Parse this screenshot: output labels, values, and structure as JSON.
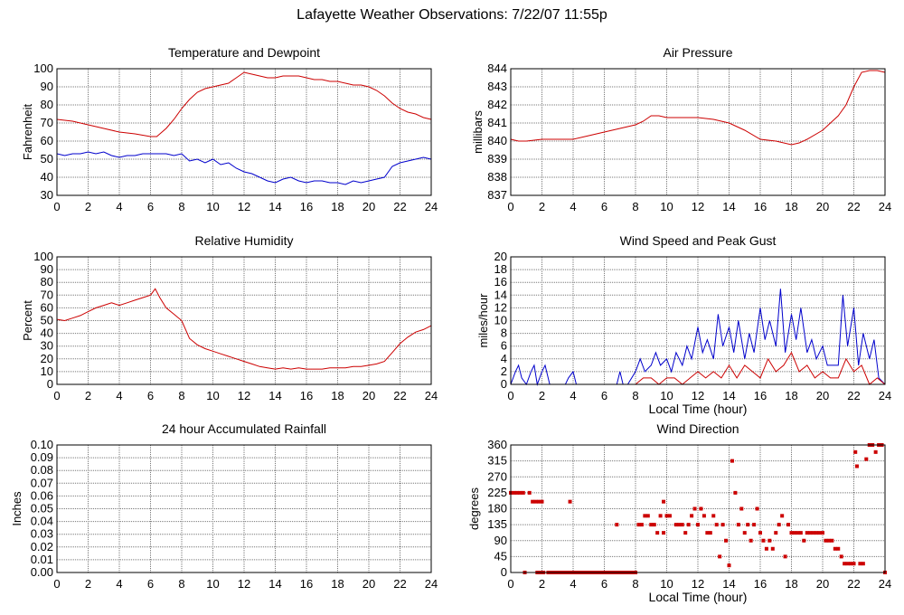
{
  "page_title": "Lafayette Weather Observations: 7/22/07 11:55p",
  "chart_data": [
    {
      "id": "temp",
      "type": "line",
      "title": "Temperature and Dewpoint",
      "xlabel": "",
      "ylabel": "Fahrenheit",
      "xlim": [
        0,
        24
      ],
      "ylim": [
        30,
        100
      ],
      "x_ticks": [
        0,
        2,
        4,
        6,
        8,
        10,
        12,
        14,
        16,
        18,
        20,
        22,
        24
      ],
      "y_ticks": [
        30,
        40,
        50,
        60,
        70,
        80,
        90,
        100
      ],
      "grid": true,
      "series": [
        {
          "color": "#cc0000",
          "x": [
            0,
            1,
            2,
            3,
            4,
            5,
            6,
            6.4,
            7,
            7.5,
            8,
            8.5,
            9,
            9.5,
            10,
            10.5,
            11,
            11.5,
            12,
            12.5,
            13,
            13.5,
            14,
            14.5,
            15,
            15.5,
            16,
            16.5,
            17,
            17.5,
            18,
            18.5,
            19,
            19.5,
            20,
            20.5,
            21,
            21.5,
            22,
            22.5,
            23,
            23.5,
            24
          ],
          "y": [
            72,
            71,
            69,
            67,
            65,
            64,
            62.5,
            62.5,
            67,
            72,
            78,
            83,
            87,
            89,
            90,
            91,
            92,
            95,
            98,
            97,
            96,
            95,
            95,
            96,
            96,
            96,
            95,
            94,
            94,
            93,
            93,
            92,
            91,
            91,
            90,
            88,
            85,
            81,
            78,
            76,
            75,
            73,
            72
          ]
        },
        {
          "color": "#0000cc",
          "x": [
            0,
            0.5,
            1,
            1.5,
            2,
            2.5,
            3,
            3.5,
            4,
            4.5,
            5,
            5.5,
            6,
            6.5,
            7,
            7.5,
            8,
            8.5,
            9,
            9.5,
            10,
            10.5,
            11,
            11.5,
            12,
            12.5,
            13,
            13.5,
            14,
            14.5,
            15,
            15.5,
            16,
            16.5,
            17,
            17.5,
            18,
            18.5,
            19,
            19.5,
            20,
            20.5,
            21,
            21.5,
            22,
            22.5,
            23,
            23.5,
            24
          ],
          "y": [
            53,
            52,
            53,
            53,
            54,
            53,
            54,
            52,
            51,
            52,
            52,
            53,
            53,
            53,
            53,
            52,
            53,
            49,
            50,
            48,
            50,
            47,
            48,
            45,
            43,
            42,
            40,
            38,
            37,
            39,
            40,
            38,
            37,
            38,
            38,
            37,
            37,
            36,
            38,
            37,
            38,
            39,
            40,
            46,
            48,
            49,
            50,
            51,
            50
          ]
        }
      ]
    },
    {
      "id": "pressure",
      "type": "line",
      "title": "Air Pressure",
      "xlabel": "",
      "ylabel": "millibars",
      "xlim": [
        0,
        24
      ],
      "ylim": [
        837,
        844
      ],
      "x_ticks": [
        0,
        2,
        4,
        6,
        8,
        10,
        12,
        14,
        16,
        18,
        20,
        22,
        24
      ],
      "y_ticks": [
        837,
        838,
        839,
        840,
        841,
        842,
        843,
        844
      ],
      "grid": true,
      "series": [
        {
          "color": "#cc0000",
          "x": [
            0,
            0.5,
            1,
            2,
            3,
            4,
            5,
            6,
            7,
            8,
            8.5,
            9,
            9.5,
            10,
            11,
            12,
            13,
            14,
            15,
            16,
            17,
            18,
            18.5,
            19,
            20,
            20.5,
            21,
            21.5,
            22,
            22.5,
            23,
            23.5,
            24
          ],
          "y": [
            840.1,
            840.0,
            840.0,
            840.1,
            840.1,
            840.1,
            840.3,
            840.5,
            840.7,
            840.9,
            841.1,
            841.4,
            841.4,
            841.3,
            841.3,
            841.3,
            841.2,
            841.0,
            840.6,
            840.1,
            840.0,
            839.8,
            839.9,
            840.1,
            840.6,
            841.0,
            841.4,
            842.0,
            843.0,
            843.8,
            843.9,
            843.9,
            843.8
          ]
        }
      ]
    },
    {
      "id": "humidity",
      "type": "line",
      "title": "Relative Humidity",
      "xlabel": "",
      "ylabel": "Percent",
      "xlim": [
        0,
        24
      ],
      "ylim": [
        0,
        100
      ],
      "x_ticks": [
        0,
        2,
        4,
        6,
        8,
        10,
        12,
        14,
        16,
        18,
        20,
        22,
        24
      ],
      "y_ticks": [
        0,
        10,
        20,
        30,
        40,
        50,
        60,
        70,
        80,
        90,
        100
      ],
      "grid": true,
      "series": [
        {
          "color": "#cc0000",
          "x": [
            0,
            0.5,
            1,
            1.5,
            2,
            2.5,
            3,
            3.5,
            4,
            4.5,
            5,
            5.5,
            6,
            6.3,
            6.6,
            7,
            7.5,
            8,
            8.5,
            9,
            9.5,
            10,
            10.5,
            11,
            11.5,
            12,
            12.5,
            13,
            13.5,
            14,
            14.5,
            15,
            15.5,
            16,
            16.5,
            17,
            17.5,
            18,
            18.5,
            19,
            19.5,
            20,
            20.5,
            21,
            21.5,
            22,
            22.5,
            23,
            23.5,
            24
          ],
          "y": [
            51,
            50,
            52,
            54,
            57,
            60,
            62,
            64,
            62,
            64,
            66,
            68,
            70,
            75,
            68,
            60,
            55,
            50,
            36,
            31,
            28,
            26,
            24,
            22,
            20,
            18,
            16,
            14,
            13,
            12,
            13,
            12,
            13,
            12,
            12,
            12,
            13,
            13,
            13,
            14,
            14,
            15,
            16,
            18,
            25,
            32,
            37,
            41,
            43,
            46
          ]
        }
      ]
    },
    {
      "id": "wind",
      "type": "line",
      "title": "Wind Speed and Peak Gust",
      "xlabel": "Local Time (hour)",
      "ylabel": "miles/hour",
      "xlim": [
        0,
        24
      ],
      "ylim": [
        0,
        20
      ],
      "x_ticks": [
        0,
        2,
        4,
        6,
        8,
        10,
        12,
        14,
        16,
        18,
        20,
        22,
        24
      ],
      "y_ticks": [
        0,
        2,
        4,
        6,
        8,
        10,
        12,
        14,
        16,
        18,
        20
      ],
      "grid": true,
      "series": [
        {
          "color": "#0000cc",
          "x": [
            0,
            0.3,
            0.5,
            0.7,
            1,
            1.3,
            1.5,
            1.7,
            2,
            2.2,
            2.5,
            3,
            3.5,
            3.7,
            4,
            4.2,
            4.5,
            5,
            6,
            6.8,
            7,
            7.2,
            7.5,
            8,
            8.3,
            8.6,
            9,
            9.3,
            9.6,
            10,
            10.3,
            10.6,
            11,
            11.3,
            11.6,
            12,
            12.3,
            12.6,
            13,
            13.3,
            13.6,
            14,
            14.3,
            14.6,
            15,
            15.3,
            15.6,
            16,
            16.3,
            16.6,
            17,
            17.3,
            17.6,
            18,
            18.3,
            18.6,
            19,
            19.3,
            19.6,
            20,
            20.3,
            20.6,
            21,
            21.3,
            21.6,
            22,
            22.3,
            22.6,
            23,
            23.3,
            23.6,
            24
          ],
          "y": [
            0,
            2,
            3,
            1,
            0,
            2,
            3,
            0,
            2,
            3,
            0,
            0,
            0,
            1,
            2,
            0,
            0,
            0,
            0,
            0,
            2,
            0,
            0,
            2,
            4,
            2,
            3,
            5,
            3,
            4,
            2,
            5,
            3,
            6,
            4,
            9,
            5,
            7,
            4,
            11,
            6,
            9,
            5,
            10,
            4,
            8,
            5,
            12,
            7,
            10,
            6,
            15,
            5,
            11,
            7,
            12,
            5,
            7,
            4,
            6,
            3,
            3,
            3,
            14,
            6,
            12,
            3,
            8,
            4,
            7,
            1,
            0
          ]
        },
        {
          "color": "#cc0000",
          "x": [
            0,
            1,
            2,
            3,
            4,
            5,
            6,
            7,
            8,
            8.5,
            9,
            9.5,
            10,
            10.5,
            11,
            11.5,
            12,
            12.5,
            13,
            13.5,
            14,
            14.5,
            15,
            15.5,
            16,
            16.5,
            17,
            17.5,
            18,
            18.5,
            19,
            19.5,
            20,
            20.5,
            21,
            21.5,
            22,
            22.5,
            23,
            23.5,
            24
          ],
          "y": [
            0,
            0,
            0,
            0,
            0,
            0,
            0,
            0,
            0,
            1,
            1,
            0,
            1,
            1,
            0,
            1,
            2,
            1,
            2,
            1,
            3,
            1,
            3,
            2,
            1,
            4,
            2,
            3,
            5,
            2,
            3,
            1,
            2,
            1,
            1,
            4,
            2,
            3,
            0,
            1,
            0
          ]
        }
      ]
    },
    {
      "id": "rain",
      "type": "line",
      "title": "24 hour Accumulated Rainfall",
      "xlabel": "",
      "ylabel": "Inches",
      "xlim": [
        0,
        24
      ],
      "ylim": [
        0,
        0.1
      ],
      "x_ticks": [
        0,
        2,
        4,
        6,
        8,
        10,
        12,
        14,
        16,
        18,
        20,
        22,
        24
      ],
      "y_ticks": [
        "0.00",
        "0.01",
        "0.02",
        "0.03",
        "0.04",
        "0.05",
        "0.06",
        "0.07",
        "0.08",
        "0.09",
        "0.10"
      ],
      "grid": true,
      "series": [
        {
          "color": "#cc0000",
          "x": [
            0,
            24
          ],
          "y": [
            0,
            0
          ]
        }
      ]
    },
    {
      "id": "winddir",
      "type": "scatter",
      "title": "Wind Direction",
      "xlabel": "Local Time (hour)",
      "ylabel": "degrees",
      "xlim": [
        0,
        24
      ],
      "ylim": [
        0,
        360
      ],
      "x_ticks": [
        0,
        2,
        4,
        6,
        8,
        10,
        12,
        14,
        16,
        18,
        20,
        22,
        24
      ],
      "y_ticks": [
        0,
        45,
        90,
        135,
        180,
        225,
        270,
        315,
        360
      ],
      "grid": true,
      "series": [
        {
          "color": "#cc0000",
          "x": [
            0,
            0.2,
            0.4,
            0.6,
            0.8,
            0.9,
            1.2,
            1.4,
            1.6,
            1.8,
            2.0,
            1.7,
            1.9,
            2.1,
            2.4,
            2.6,
            2.8,
            3.0,
            3.2,
            3.4,
            3.6,
            3.8,
            3.8,
            4.0,
            4.2,
            4.4,
            4.6,
            4.8,
            5.0,
            5.2,
            5.4,
            5.6,
            5.8,
            6.0,
            6.2,
            6.4,
            6.6,
            6.8,
            7.0,
            7.2,
            7.4,
            7.6,
            7.8,
            8.0,
            6.8,
            8.2,
            8.4,
            8.6,
            8.8,
            9.0,
            9.2,
            9.4,
            9.6,
            9.8,
            10.0,
            10.2,
            9.8,
            10.6,
            10.8,
            11.0,
            11.2,
            11.4,
            11.6,
            11.8,
            12.0,
            12.2,
            12.4,
            12.6,
            12.8,
            13.0,
            13.2,
            13.4,
            13.6,
            13.8,
            14.0,
            14.2,
            14.4,
            14.6,
            14.8,
            15.0,
            15.2,
            15.4,
            15.6,
            15.8,
            16.0,
            16.2,
            16.4,
            16.6,
            16.8,
            17.0,
            17.2,
            17.4,
            17.6,
            17.8,
            18.0,
            18.2,
            18.4,
            18.6,
            18.8,
            19.0,
            19.2,
            19.4,
            19.6,
            19.8,
            20.0,
            20.2,
            20.4,
            20.6,
            20.8,
            21.0,
            21.2,
            21.4,
            21.6,
            21.8,
            22.0,
            22.1,
            22.2,
            22.4,
            22.6,
            22.8,
            23.0,
            23.2,
            23.4,
            23.6,
            23.8,
            24.0
          ],
          "y": [
            225,
            225,
            225,
            225,
            225,
            0,
            225,
            200,
            200,
            200,
            200,
            0,
            0,
            0,
            0,
            0,
            0,
            0,
            0,
            0,
            0,
            0,
            200,
            0,
            0,
            0,
            0,
            0,
            0,
            0,
            0,
            0,
            0,
            0,
            0,
            0,
            0,
            0,
            0,
            0,
            0,
            0,
            0,
            0,
            135,
            135,
            135,
            160,
            160,
            135,
            135,
            112,
            160,
            200,
            160,
            160,
            112,
            135,
            135,
            135,
            112,
            135,
            160,
            180,
            135,
            180,
            160,
            112,
            112,
            160,
            135,
            45,
            135,
            90,
            20,
            315,
            225,
            135,
            180,
            112,
            135,
            90,
            135,
            180,
            112,
            90,
            67,
            90,
            67,
            112,
            135,
            160,
            45,
            135,
            112,
            112,
            112,
            112,
            90,
            112,
            112,
            112,
            112,
            112,
            112,
            90,
            90,
            90,
            67,
            67,
            45,
            25,
            25,
            25,
            25,
            340,
            300,
            25,
            25,
            320,
            360,
            360,
            340,
            360,
            360,
            0
          ]
        }
      ]
    }
  ]
}
